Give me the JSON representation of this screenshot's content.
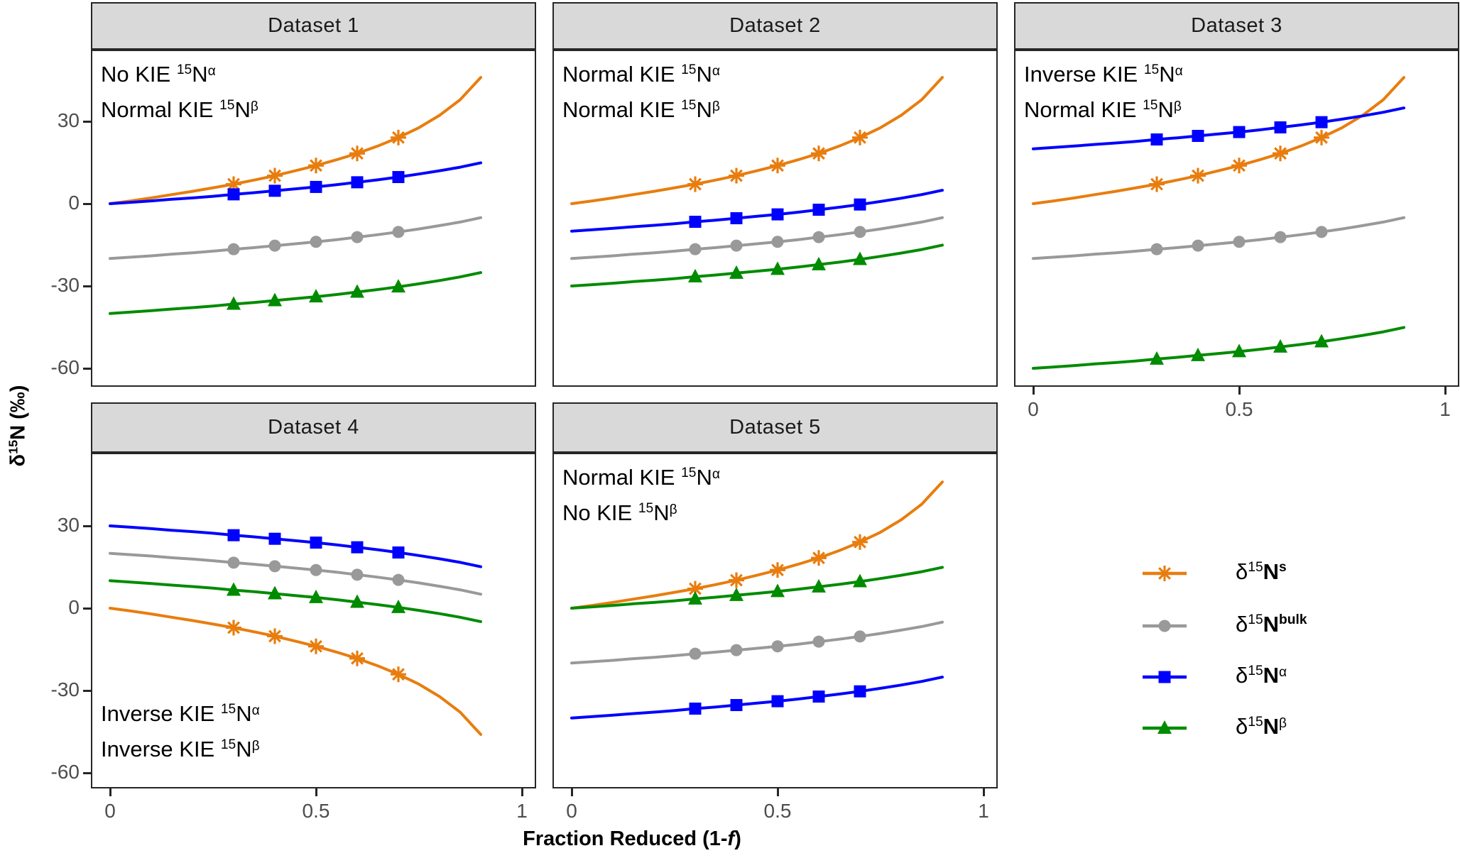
{
  "figure": {
    "y_axis_title": {
      "delta": "δ",
      "iso": "15",
      "base": "N",
      "unit": " (‰)"
    },
    "x_axis_title": {
      "prefix": "Fraction Reduced (1-",
      "italic": "f",
      "suffix": ")"
    }
  },
  "chart_data": {
    "type": "line",
    "grid": false,
    "x_ticks": [
      "0",
      "0.5",
      "1"
    ],
    "x_tick_values": [
      0,
      0.5,
      1
    ],
    "y_ticks": [
      "30",
      "0",
      "-30",
      "-60"
    ],
    "y_tick_values": [
      30,
      0,
      -30,
      -60
    ],
    "xlim": [
      -0.047,
      1.047
    ],
    "ylim": [
      -66.5,
      56.5
    ],
    "xlabel": "Fraction Reduced (1-f)",
    "ylabel": "δ15N (‰)",
    "legend_position": "empty facet cell, bottom-right",
    "marker_x": [
      0.3,
      0.4,
      0.5,
      0.6,
      0.7
    ],
    "x": [
      0,
      0.05,
      0.1,
      0.15,
      0.2,
      0.25,
      0.3,
      0.35,
      0.4,
      0.45,
      0.5,
      0.55,
      0.6,
      0.65,
      0.7,
      0.75,
      0.8,
      0.85,
      0.9
    ],
    "series_order": [
      "s",
      "bulk",
      "alpha",
      "beta"
    ],
    "series_style": {
      "s": {
        "color": "#E87D0E",
        "marker": "asterisk"
      },
      "bulk": {
        "color": "#999999",
        "marker": "circle"
      },
      "alpha": {
        "color": "#0000FF",
        "marker": "square"
      },
      "beta": {
        "color": "#008B00",
        "marker": "triangle"
      }
    },
    "legend": [
      {
        "series": "s",
        "segments": [
          {
            "t": "δ"
          },
          {
            "t": "15",
            "sup": true
          },
          {
            "t": "N",
            "bold": true
          },
          {
            "t": "s",
            "sup": true,
            "bold": true
          }
        ]
      },
      {
        "series": "bulk",
        "segments": [
          {
            "t": "δ"
          },
          {
            "t": "15",
            "sup": true
          },
          {
            "t": "N",
            "bold": true
          },
          {
            "t": "bulk",
            "sup": true,
            "bold": true
          }
        ]
      },
      {
        "series": "alpha",
        "segments": [
          {
            "t": "δ"
          },
          {
            "t": "15",
            "sup": true
          },
          {
            "t": "N",
            "bold": true
          },
          {
            "t": "α",
            "sup": true
          }
        ]
      },
      {
        "series": "beta",
        "segments": [
          {
            "t": "δ"
          },
          {
            "t": "15",
            "sup": true
          },
          {
            "t": "N",
            "bold": true
          },
          {
            "t": "β",
            "sup": true
          }
        ]
      }
    ],
    "facets": [
      {
        "title": "Dataset 1",
        "annotation_position": "top-left",
        "annotation": [
          [
            {
              "t": "No KIE "
            },
            {
              "t": "15",
              "sup": true
            },
            {
              "t": "N"
            },
            {
              "t": "α",
              "sup": true
            }
          ],
          [
            {
              "t": "Normal KIE "
            },
            {
              "t": "15",
              "sup": true
            },
            {
              "t": "N"
            },
            {
              "t": "β",
              "sup": true
            }
          ]
        ],
        "series": {
          "s": [
            0,
            1.0,
            2.1,
            3.3,
            4.5,
            5.8,
            7.1,
            8.6,
            10.2,
            12.0,
            13.9,
            16.0,
            18.3,
            21.0,
            24.1,
            27.7,
            32.2,
            37.9,
            46.0
          ],
          "bulk": [
            -20,
            -19.5,
            -19.0,
            -18.4,
            -17.9,
            -17.3,
            -16.6,
            -16.0,
            -15.3,
            -14.6,
            -13.9,
            -13.1,
            -12.2,
            -11.3,
            -10.3,
            -9.2,
            -8.0,
            -6.7,
            -5.1
          ],
          "alpha": [
            0,
            0.5,
            1.0,
            1.6,
            2.1,
            2.7,
            3.4,
            4.0,
            4.7,
            5.4,
            6.1,
            6.9,
            7.8,
            8.7,
            9.7,
            10.8,
            12.0,
            13.3,
            14.9
          ],
          "beta": [
            -40,
            -39.5,
            -39.0,
            -38.4,
            -37.9,
            -37.3,
            -36.6,
            -36.0,
            -35.3,
            -34.6,
            -33.9,
            -33.1,
            -32.2,
            -31.3,
            -30.3,
            -29.2,
            -28.0,
            -26.7,
            -25.1
          ]
        }
      },
      {
        "title": "Dataset 2",
        "annotation_position": "top-left",
        "annotation": [
          [
            {
              "t": "Normal KIE "
            },
            {
              "t": "15",
              "sup": true
            },
            {
              "t": "N"
            },
            {
              "t": "α",
              "sup": true
            }
          ],
          [
            {
              "t": "Normal KIE "
            },
            {
              "t": "15",
              "sup": true
            },
            {
              "t": "N"
            },
            {
              "t": "β",
              "sup": true
            }
          ]
        ],
        "series": {
          "s": [
            0,
            1.0,
            2.1,
            3.3,
            4.5,
            5.8,
            7.1,
            8.6,
            10.2,
            12.0,
            13.9,
            16.0,
            18.3,
            21.0,
            24.1,
            27.7,
            32.2,
            37.9,
            46.0
          ],
          "bulk": [
            -20,
            -19.5,
            -19.0,
            -18.4,
            -17.9,
            -17.3,
            -16.6,
            -16.0,
            -15.3,
            -14.6,
            -13.9,
            -13.1,
            -12.2,
            -11.3,
            -10.3,
            -9.2,
            -8.0,
            -6.7,
            -5.1
          ],
          "alpha": [
            -10,
            -9.5,
            -9.0,
            -8.4,
            -7.9,
            -7.3,
            -6.6,
            -6.0,
            -5.3,
            -4.6,
            -3.9,
            -3.1,
            -2.2,
            -1.3,
            -0.3,
            0.8,
            2.0,
            3.3,
            4.9
          ],
          "beta": [
            -30,
            -29.5,
            -29.0,
            -28.4,
            -27.9,
            -27.3,
            -26.6,
            -26.0,
            -25.3,
            -24.6,
            -23.9,
            -23.1,
            -22.2,
            -21.3,
            -20.3,
            -19.2,
            -18.0,
            -16.7,
            -15.1
          ]
        }
      },
      {
        "title": "Dataset 3",
        "annotation_position": "top-left",
        "annotation": [
          [
            {
              "t": "Inverse KIE "
            },
            {
              "t": "15",
              "sup": true
            },
            {
              "t": "N"
            },
            {
              "t": "α",
              "sup": true
            }
          ],
          [
            {
              "t": "Normal KIE "
            },
            {
              "t": "15",
              "sup": true
            },
            {
              "t": "N"
            },
            {
              "t": "β",
              "sup": true
            }
          ]
        ],
        "series": {
          "s": [
            0,
            1.0,
            2.1,
            3.3,
            4.5,
            5.8,
            7.1,
            8.6,
            10.2,
            12.0,
            13.9,
            16.0,
            18.3,
            21.0,
            24.1,
            27.7,
            32.2,
            37.9,
            46.0
          ],
          "bulk": [
            -20,
            -19.5,
            -19.0,
            -18.4,
            -17.9,
            -17.3,
            -16.6,
            -16.0,
            -15.3,
            -14.6,
            -13.9,
            -13.1,
            -12.2,
            -11.3,
            -10.3,
            -9.2,
            -8.0,
            -6.7,
            -5.1
          ],
          "alpha": [
            20,
            20.5,
            21.0,
            21.6,
            22.1,
            22.7,
            23.4,
            24.0,
            24.7,
            25.4,
            26.1,
            26.9,
            27.8,
            28.7,
            29.7,
            30.8,
            32.0,
            33.3,
            34.9
          ],
          "beta": [
            -60,
            -59.5,
            -59.0,
            -58.4,
            -57.9,
            -57.3,
            -56.6,
            -56.0,
            -55.3,
            -54.6,
            -53.9,
            -53.1,
            -52.2,
            -51.3,
            -50.3,
            -49.2,
            -48.0,
            -46.7,
            -45.1
          ]
        }
      },
      {
        "title": "Dataset 4",
        "annotation_position": "bottom-left",
        "annotation": [
          [
            {
              "t": "Inverse KIE "
            },
            {
              "t": "15",
              "sup": true
            },
            {
              "t": "N"
            },
            {
              "t": "α",
              "sup": true
            }
          ],
          [
            {
              "t": "Inverse KIE "
            },
            {
              "t": "15",
              "sup": true
            },
            {
              "t": "N"
            },
            {
              "t": "β",
              "sup": true
            }
          ]
        ],
        "series": {
          "s": [
            0,
            -1.0,
            -2.1,
            -3.3,
            -4.5,
            -5.8,
            -7.1,
            -8.6,
            -10.2,
            -12.0,
            -13.9,
            -16.0,
            -18.3,
            -21.0,
            -24.1,
            -27.7,
            -32.2,
            -37.9,
            -46.0
          ],
          "bulk": [
            20,
            19.5,
            19.0,
            18.4,
            17.9,
            17.3,
            16.6,
            16.0,
            15.3,
            14.6,
            13.9,
            13.1,
            12.2,
            11.3,
            10.3,
            9.2,
            8.0,
            6.7,
            5.1
          ],
          "alpha": [
            30,
            29.5,
            29.0,
            28.4,
            27.9,
            27.3,
            26.6,
            26.0,
            25.3,
            24.6,
            23.9,
            23.1,
            22.2,
            21.3,
            20.3,
            19.2,
            18.0,
            16.7,
            15.1
          ],
          "beta": [
            10,
            9.5,
            9.0,
            8.4,
            7.9,
            7.3,
            6.6,
            6.0,
            5.3,
            4.6,
            3.9,
            3.1,
            2.2,
            1.3,
            0.3,
            -0.8,
            -2.0,
            -3.3,
            -4.9
          ]
        }
      },
      {
        "title": "Dataset 5",
        "annotation_position": "top-left",
        "annotation": [
          [
            {
              "t": "Normal KIE "
            },
            {
              "t": "15",
              "sup": true
            },
            {
              "t": "N"
            },
            {
              "t": "α",
              "sup": true
            }
          ],
          [
            {
              "t": "No KIE "
            },
            {
              "t": "15",
              "sup": true
            },
            {
              "t": "N"
            },
            {
              "t": "β",
              "sup": true
            }
          ]
        ],
        "series": {
          "s": [
            0,
            1.0,
            2.1,
            3.3,
            4.5,
            5.8,
            7.1,
            8.6,
            10.2,
            12.0,
            13.9,
            16.0,
            18.3,
            21.0,
            24.1,
            27.7,
            32.2,
            37.9,
            46.0
          ],
          "bulk": [
            -20,
            -19.5,
            -19.0,
            -18.4,
            -17.9,
            -17.3,
            -16.6,
            -16.0,
            -15.3,
            -14.6,
            -13.9,
            -13.1,
            -12.2,
            -11.3,
            -10.3,
            -9.2,
            -8.0,
            -6.7,
            -5.1
          ],
          "alpha": [
            -40,
            -39.5,
            -39.0,
            -38.4,
            -37.9,
            -37.3,
            -36.6,
            -36.0,
            -35.3,
            -34.6,
            -33.9,
            -33.1,
            -32.2,
            -31.3,
            -30.3,
            -29.2,
            -28.0,
            -26.7,
            -25.1
          ],
          "beta": [
            0,
            0.5,
            1.0,
            1.6,
            2.1,
            2.7,
            3.4,
            4.0,
            4.7,
            5.4,
            6.1,
            6.9,
            7.8,
            8.7,
            9.7,
            10.8,
            12.0,
            13.3,
            14.9
          ]
        }
      }
    ]
  }
}
